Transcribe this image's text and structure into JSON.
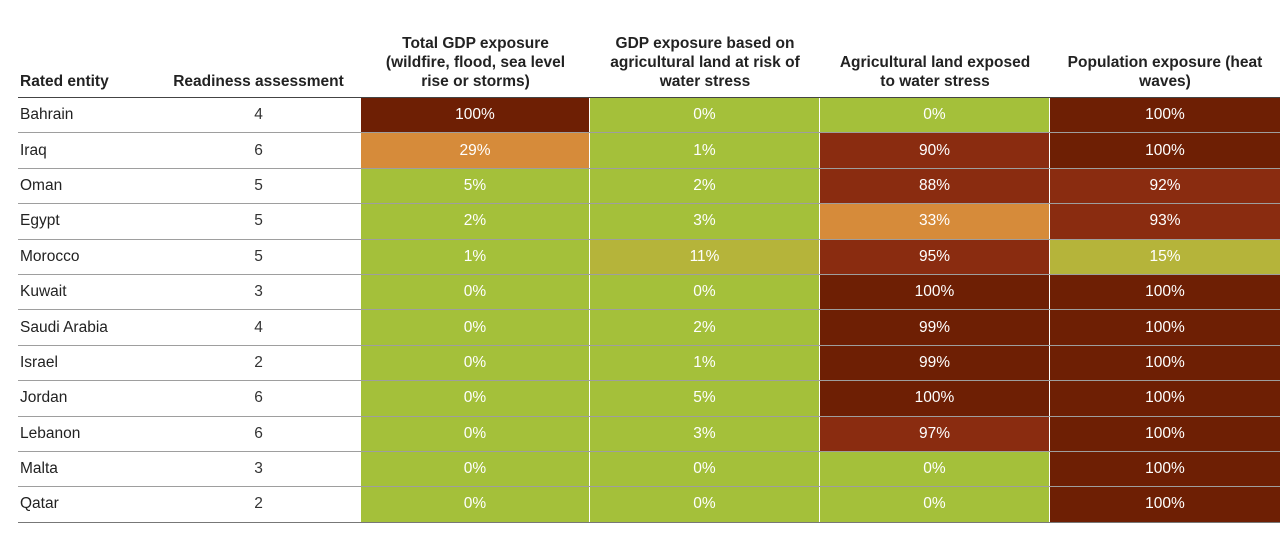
{
  "chart_data": {
    "type": "table",
    "columns": [
      "Rated entity",
      "Readiness assessment",
      "Total GDP exposure (wildfire, flood, sea level rise or storms)",
      "GDP exposure based on agricultural land at risk of water stress",
      "Agricultural land exposed to water stress",
      "Population exposure (heat waves)"
    ],
    "rows": [
      {
        "entity": "Bahrain",
        "readiness": "4",
        "values": [
          "100%",
          "0%",
          "0%",
          "100%"
        ]
      },
      {
        "entity": "Iraq",
        "readiness": "6",
        "values": [
          "29%",
          "1%",
          "90%",
          "100%"
        ]
      },
      {
        "entity": "Oman",
        "readiness": "5",
        "values": [
          "5%",
          "2%",
          "88%",
          "92%"
        ]
      },
      {
        "entity": "Egypt",
        "readiness": "5",
        "values": [
          "2%",
          "3%",
          "33%",
          "93%"
        ]
      },
      {
        "entity": "Morocco",
        "readiness": "5",
        "values": [
          "1%",
          "11%",
          "95%",
          "15%"
        ]
      },
      {
        "entity": "Kuwait",
        "readiness": "3",
        "values": [
          "0%",
          "0%",
          "100%",
          "100%"
        ]
      },
      {
        "entity": "Saudi Arabia",
        "readiness": "4",
        "values": [
          "0%",
          "2%",
          "99%",
          "100%"
        ]
      },
      {
        "entity": "Israel",
        "readiness": "2",
        "values": [
          "0%",
          "1%",
          "99%",
          "100%"
        ]
      },
      {
        "entity": "Jordan",
        "readiness": "6",
        "values": [
          "0%",
          "5%",
          "100%",
          "100%"
        ]
      },
      {
        "entity": "Lebanon",
        "readiness": "6",
        "values": [
          "0%",
          "3%",
          "97%",
          "100%"
        ]
      },
      {
        "entity": "Malta",
        "readiness": "3",
        "values": [
          "0%",
          "0%",
          "0%",
          "100%"
        ]
      },
      {
        "entity": "Qatar",
        "readiness": "2",
        "values": [
          "0%",
          "0%",
          "0%",
          "100%"
        ]
      }
    ]
  },
  "colors": {
    "low": "#a4c03a",
    "low_mid": "#b5b43a",
    "mid": "#d68b3a",
    "high": "#8a2c10",
    "max": "#6e1f04"
  }
}
